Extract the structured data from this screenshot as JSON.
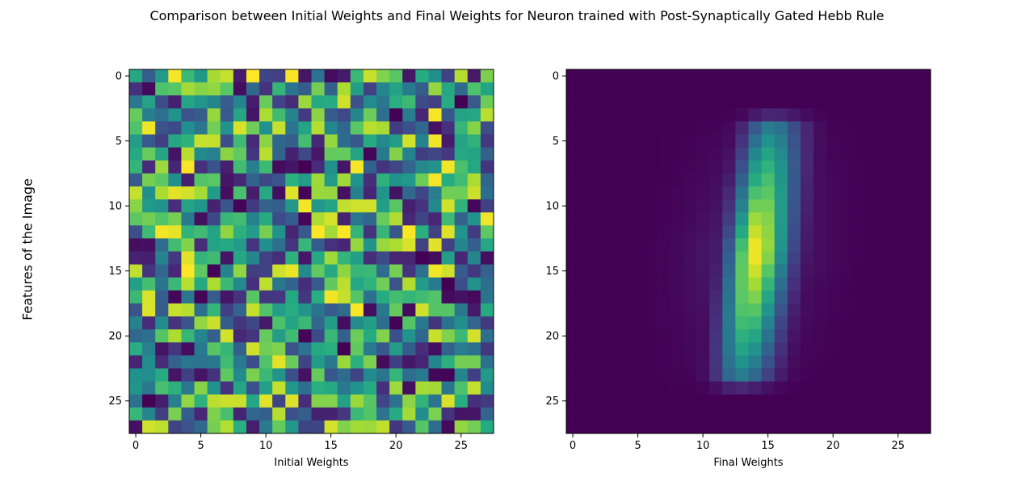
{
  "figure": {
    "title": "Comparison between Initial Weights and Final Weights for Neuron trained with Post-Synaptically Gated Hebb Rule",
    "ylabel": "Features of the Image"
  },
  "chart_data": [
    {
      "type": "heatmap",
      "xlabel": "Initial Weights",
      "rows": 28,
      "cols": 28,
      "xticks": [
        0,
        5,
        10,
        15,
        20,
        25
      ],
      "yticks": [
        0,
        5,
        10,
        15,
        20,
        25
      ],
      "colormap": "viridis",
      "value_range": [
        0,
        1
      ],
      "pattern": "uniform random values in [0, 1] (per-pixel values not recoverable)"
    },
    {
      "type": "heatmap",
      "xlabel": "Final Weights",
      "rows": 28,
      "cols": 28,
      "xticks": [
        0,
        5,
        10,
        15,
        20,
        25
      ],
      "yticks": [
        0,
        5,
        10,
        15,
        20,
        25
      ],
      "colormap": "viridis",
      "value_range": [
        0,
        1
      ],
      "pattern": "digit-like vertical stroke: bright ridge near columns 13-15, rows 4-23, slight diagonal slant"
    }
  ]
}
